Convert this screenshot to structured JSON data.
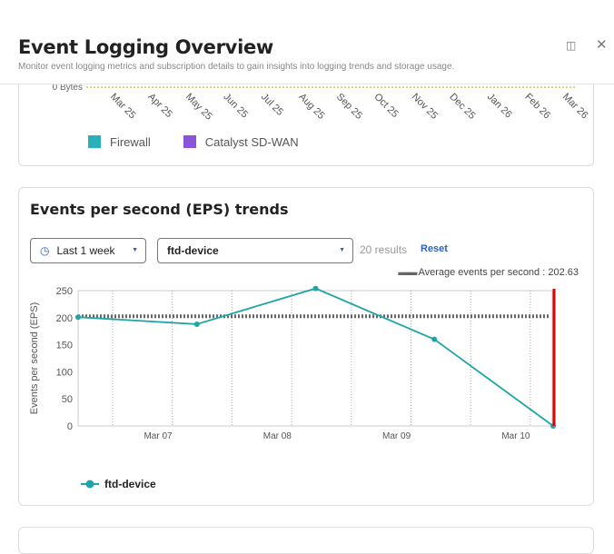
{
  "header": {
    "title": "Event Logging Overview",
    "subtitle": "Monitor event logging metrics and subscription details to gain insights into logging trends and storage usage.",
    "panel_icon": "panel-layout-icon",
    "close_icon": "close-icon"
  },
  "storage_chart": {
    "y_tick": "0 Bytes",
    "x_ticks": [
      "Mar 25",
      "Apr 25",
      "May 25",
      "Jun 25",
      "Jul 25",
      "Aug 25",
      "Sep 25",
      "Oct 25",
      "Nov 25",
      "Dec 25",
      "Jan 26",
      "Feb 26",
      "Mar 26"
    ],
    "legend": [
      {
        "label": "Firewall",
        "color": "#2ab0b8"
      },
      {
        "label": "Catalyst SD-WAN",
        "color": "#8a55d6"
      }
    ]
  },
  "eps": {
    "title": "Events per second (EPS) trends",
    "time_filter": "Last 1 week",
    "device_filter": "ftd-device",
    "results": "20 results",
    "reset": "Reset",
    "avg_label": "Average events per second : 202.63"
  },
  "chart_data": {
    "type": "line",
    "ylabel": "Events per second (EPS)",
    "ylim": [
      0,
      250
    ],
    "y_ticks": [
      "0",
      "50",
      "100",
      "150",
      "200",
      "250"
    ],
    "x_ticks": [
      "Mar 07",
      "Mar 08",
      "Mar 09",
      "Mar 10"
    ],
    "series": [
      {
        "name": "ftd-device",
        "color": "#1fa5a8",
        "x": [
          "Mar 06 08:00",
          "Mar 07 08:00",
          "Mar 08 08:00",
          "Mar 09 08:00",
          "Mar 10 08:00"
        ],
        "values": [
          201,
          188,
          254,
          160,
          0
        ]
      }
    ],
    "average": 202.63,
    "grid": "vertical dotted",
    "marker_color": "#e00000",
    "legend": "bottom-left"
  }
}
